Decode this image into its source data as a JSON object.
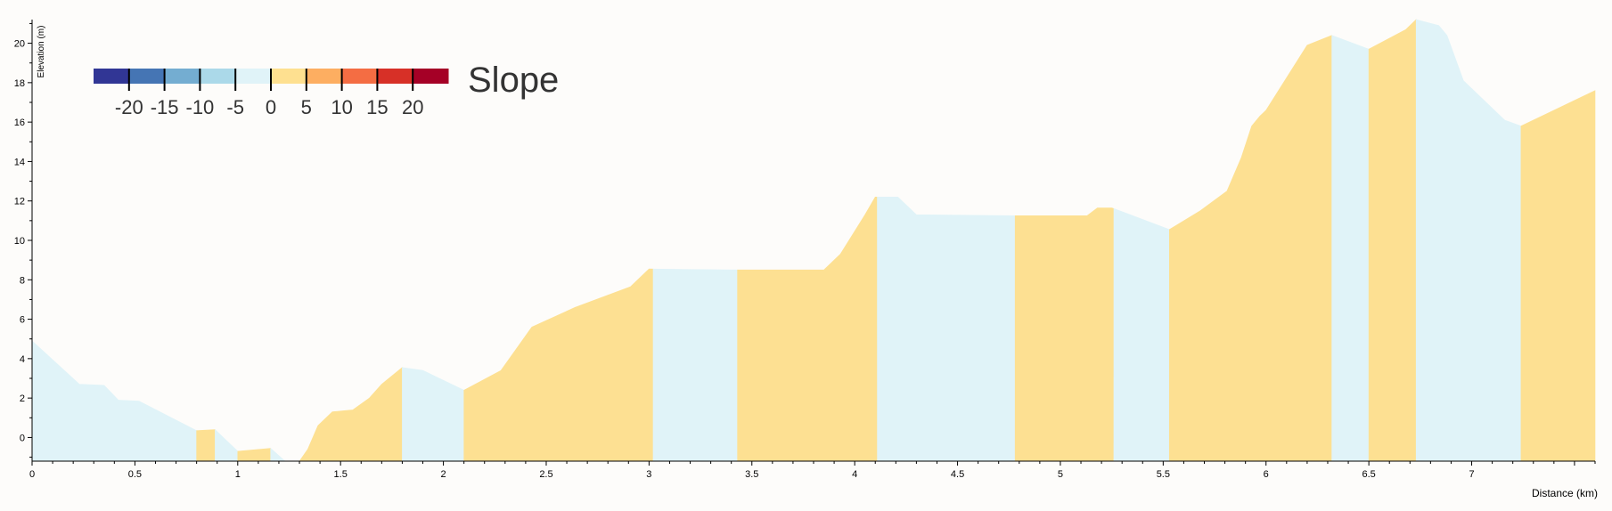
{
  "chart_data": {
    "type": "area",
    "xlabel": "Distance (km)",
    "ylabel": "Elevation (m)",
    "xlim": [
      0,
      7.6
    ],
    "ylim": [
      -1.2,
      21.2
    ],
    "x_ticks": [
      0,
      0.5,
      1,
      1.5,
      2,
      2.5,
      3,
      3.5,
      4,
      4.5,
      5,
      5.5,
      6,
      6.5,
      7
    ],
    "x_tick_labels": [
      "0",
      "0.5",
      "1",
      "1.5",
      "2",
      "2.5",
      "3",
      "3.5",
      "4",
      "4.5",
      "5",
      "5.5",
      "6",
      "6.5",
      "7"
    ],
    "y_ticks": [
      0,
      2,
      4,
      6,
      8,
      10,
      12,
      14,
      16,
      18,
      20
    ],
    "y_tick_labels": [
      "0",
      "2",
      "4",
      "6",
      "8",
      "10",
      "12",
      "14",
      "16",
      "18",
      "20"
    ],
    "colors": {
      "uphill": "#fde092",
      "downhill": "#e0f3f8"
    },
    "profile": [
      [
        0,
        4.9
      ],
      [
        0.23,
        2.7
      ],
      [
        0.35,
        2.65
      ],
      [
        0.42,
        1.9
      ],
      [
        0.52,
        1.85
      ],
      [
        0.8,
        0.35
      ],
      [
        0.89,
        0.4
      ],
      [
        1.0,
        -0.7
      ],
      [
        1.16,
        -0.55
      ],
      [
        1.23,
        -1.2
      ],
      [
        1.3,
        -1.2
      ],
      [
        1.34,
        -0.6
      ],
      [
        1.39,
        0.6
      ],
      [
        1.46,
        1.3
      ],
      [
        1.56,
        1.4
      ],
      [
        1.64,
        2.0
      ],
      [
        1.7,
        2.7
      ],
      [
        1.8,
        3.55
      ],
      [
        1.9,
        3.4
      ],
      [
        2.1,
        2.4
      ],
      [
        2.28,
        3.4
      ],
      [
        2.43,
        5.6
      ],
      [
        2.64,
        6.6
      ],
      [
        2.91,
        7.65
      ],
      [
        3.0,
        8.55
      ],
      [
        3.43,
        8.5
      ],
      [
        3.85,
        8.5
      ],
      [
        3.93,
        9.3
      ],
      [
        4.05,
        11.3
      ],
      [
        4.1,
        12.2
      ],
      [
        4.21,
        12.2
      ],
      [
        4.3,
        11.3
      ],
      [
        4.78,
        11.25
      ],
      [
        5.13,
        11.25
      ],
      [
        5.18,
        11.65
      ],
      [
        5.25,
        11.65
      ],
      [
        5.53,
        10.55
      ],
      [
        5.68,
        11.5
      ],
      [
        5.81,
        12.5
      ],
      [
        5.88,
        14.2
      ],
      [
        5.93,
        15.8
      ],
      [
        5.97,
        16.3
      ],
      [
        6.0,
        16.6
      ],
      [
        6.2,
        19.9
      ],
      [
        6.32,
        20.4
      ],
      [
        6.5,
        19.7
      ],
      [
        6.68,
        20.7
      ],
      [
        6.73,
        21.2
      ],
      [
        6.84,
        20.9
      ],
      [
        6.88,
        20.4
      ],
      [
        6.96,
        18.1
      ],
      [
        7.16,
        16.1
      ],
      [
        7.24,
        15.8
      ],
      [
        7.6,
        17.6
      ]
    ],
    "segments": [
      {
        "from": 0,
        "to": 0.8,
        "slope": "downhill"
      },
      {
        "from": 0.8,
        "to": 0.89,
        "slope": "uphill"
      },
      {
        "from": 0.89,
        "to": 1.0,
        "slope": "downhill"
      },
      {
        "from": 1.0,
        "to": 1.16,
        "slope": "uphill"
      },
      {
        "from": 1.16,
        "to": 1.26,
        "slope": "downhill"
      },
      {
        "from": 1.26,
        "to": 1.8,
        "slope": "uphill"
      },
      {
        "from": 1.8,
        "to": 2.1,
        "slope": "downhill"
      },
      {
        "from": 2.1,
        "to": 3.02,
        "slope": "uphill"
      },
      {
        "from": 3.02,
        "to": 3.43,
        "slope": "downhill"
      },
      {
        "from": 3.43,
        "to": 4.11,
        "slope": "uphill"
      },
      {
        "from": 4.11,
        "to": 4.78,
        "slope": "downhill"
      },
      {
        "from": 4.78,
        "to": 5.26,
        "slope": "uphill"
      },
      {
        "from": 5.26,
        "to": 5.53,
        "slope": "downhill"
      },
      {
        "from": 5.53,
        "to": 6.32,
        "slope": "uphill"
      },
      {
        "from": 6.32,
        "to": 6.5,
        "slope": "downhill"
      },
      {
        "from": 6.5,
        "to": 6.73,
        "slope": "uphill"
      },
      {
        "from": 6.73,
        "to": 7.24,
        "slope": "downhill"
      },
      {
        "from": 7.24,
        "to": 7.6,
        "slope": "uphill"
      }
    ],
    "legend": {
      "title": "Slope",
      "placement": "top-left",
      "colors": [
        "#313695",
        "#4575b4",
        "#74add1",
        "#abd9e9",
        "#e0f3f8",
        "#fee090",
        "#fdae61",
        "#f46d43",
        "#d73027",
        "#a50026"
      ],
      "tick_labels": [
        "-20",
        "-15",
        "-10",
        "-5",
        "0",
        "5",
        "10",
        "15",
        "20"
      ]
    }
  }
}
